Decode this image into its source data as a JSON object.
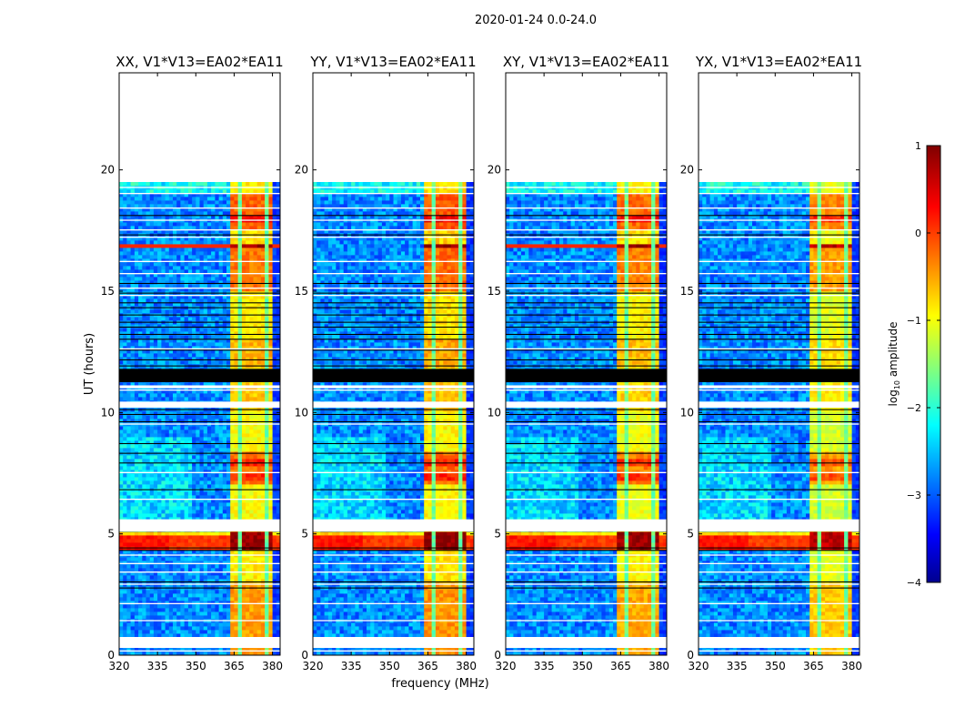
{
  "chart_data": {
    "type": "heatmap",
    "title": "2020-01-24 0.0-24.0",
    "xlabel": "frequency (MHz)",
    "ylabel": "UT (hours)",
    "xlim": [
      320,
      383
    ],
    "ylim": [
      0,
      24
    ],
    "xticks": [
      320,
      335,
      350,
      365,
      380
    ],
    "yticks": [
      0,
      5,
      10,
      15,
      20
    ],
    "colormap": "jet",
    "colorbar": {
      "label": "log10 amplitude",
      "label_main": "log",
      "label_sub": "10",
      "label_rest": " amplitude",
      "range": [
        -4,
        1
      ],
      "ticks": [
        1,
        0,
        -1,
        -2,
        -3,
        -4
      ],
      "tick_labels": [
        "1",
        "0",
        "−1",
        "−2",
        "−3",
        "−4"
      ]
    },
    "panels": [
      {
        "title": "XX, V1*V13=EA02*EA11",
        "pol": "XX",
        "block_offset": 0,
        "red_line": true
      },
      {
        "title": "YY, V1*V13=EA02*EA11",
        "pol": "YY",
        "block_offset": 0.05,
        "red_line": false
      },
      {
        "title": "XY, V1*V13=EA02*EA11",
        "pol": "XY",
        "block_offset": -0.05,
        "red_line": true
      },
      {
        "title": "YX, V1*V13=EA02*EA11",
        "pol": "YX",
        "block_offset": -0.2,
        "red_line": false
      }
    ],
    "data_end_hours": 19.5,
    "background_level": -2.7,
    "high_freq_edge_mhz": 380.5,
    "high_freq_level": -3.1,
    "rfi_channel_blocks_mhz": [
      [
        363.5,
        367
      ],
      [
        368,
        372.5
      ],
      [
        373,
        377.2
      ],
      [
        378,
        380.5
      ]
    ],
    "block_levels_by_time": [
      {
        "t": [
          0,
          3
        ],
        "v": -0.4
      },
      {
        "t": [
          3,
          4.4
        ],
        "v": -0.8
      },
      {
        "t": [
          4.4,
          5.1
        ],
        "v": 0.9
      },
      {
        "t": [
          5.6,
          7
        ],
        "v": -0.9
      },
      {
        "t": [
          7,
          8.4
        ],
        "v": -0.2
      },
      {
        "t": [
          8.4,
          10
        ],
        "v": -0.9
      },
      {
        "t": [
          10,
          11.2
        ],
        "v": -0.6
      },
      {
        "t": [
          11.8,
          13
        ],
        "v": -0.5
      },
      {
        "t": [
          13,
          15
        ],
        "v": -0.8
      },
      {
        "t": [
          15,
          16.75
        ],
        "v": -0.2
      },
      {
        "t": [
          16.75,
          16.95
        ],
        "v": 0.9
      },
      {
        "t": [
          16.95,
          17.5
        ],
        "v": -0.7
      },
      {
        "t": [
          17.5,
          19
        ],
        "v": -0.1
      },
      {
        "t": [
          19,
          19.5
        ],
        "v": -0.8
      }
    ],
    "broadband_events": [
      {
        "t": [
          4.4,
          4.95
        ],
        "v": 0.3
      },
      {
        "t": [
          4.95,
          5.1
        ],
        "v": -0.6
      }
    ],
    "flagged_white_hours": [
      [
        0.3,
        0.75
      ],
      [
        5.1,
        5.6
      ],
      [
        10.2,
        10.45
      ],
      [
        11.0,
        11.12
      ]
    ],
    "flagged_black_hours": [
      [
        11.25,
        11.8
      ]
    ],
    "thin_white_lines_hours": [
      0.15,
      1.4,
      2.1,
      2.9,
      3.4,
      3.75,
      4.1,
      6.4,
      7.5,
      9.5,
      10.9,
      12.6,
      14.8,
      15.1,
      15.7,
      16.2,
      17.2,
      17.5,
      17.9,
      18.4,
      19.0,
      19.25
    ],
    "thin_black_lines_hours": [
      2.75,
      3.0,
      4.3,
      4.4,
      6.8,
      7.9,
      8.3,
      8.7,
      9.6,
      9.9,
      10.1,
      11.9,
      12.15,
      12.55,
      13.0,
      13.2,
      13.5,
      13.7,
      14.0,
      14.3,
      14.5,
      14.9,
      15.3,
      17.3,
      18.1
    ]
  }
}
